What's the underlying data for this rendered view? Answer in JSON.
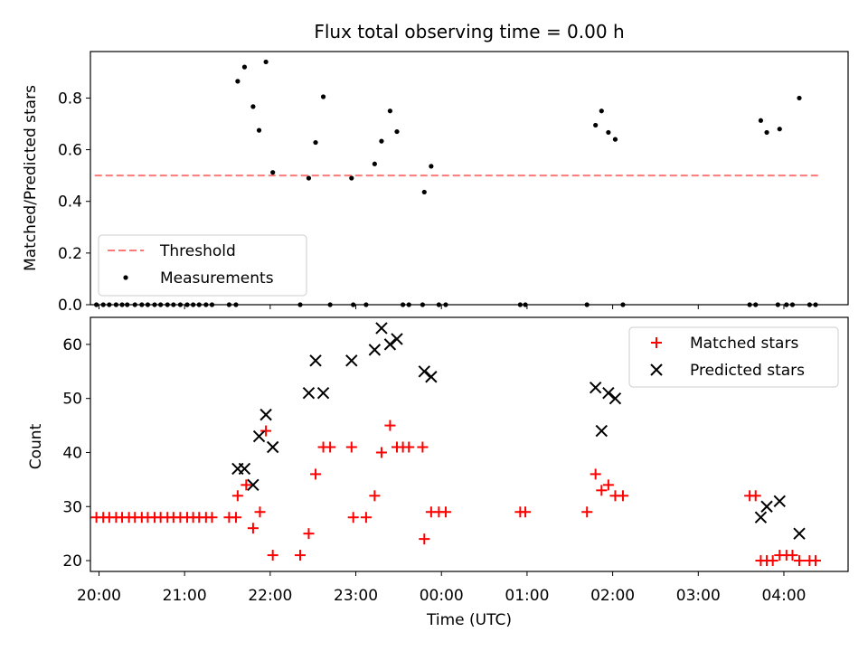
{
  "figure": {
    "title": "Flux total observing time = 0.00 h",
    "x_label": "Time (UTC)",
    "x_ticks": [
      "20:00",
      "21:00",
      "22:00",
      "23:00",
      "00:00",
      "01:00",
      "02:00",
      "03:00",
      "04:00"
    ]
  },
  "chart_data": [
    {
      "type": "scatter",
      "ylabel": "Matched/Predicted stars",
      "xlim": [
        19.9,
        28.75
      ],
      "ylim": [
        0,
        0.98
      ],
      "yticks": [
        "0.0",
        "0.2",
        "0.4",
        "0.6",
        "0.8"
      ],
      "ytick_values": [
        0,
        0.2,
        0.4,
        0.6,
        0.8
      ],
      "grid": false,
      "legend_placement": "lower-left",
      "threshold": {
        "name": "Threshold",
        "value": 0.5,
        "x_range": [
          19.95,
          28.4
        ],
        "color": "#ff7777",
        "style": "dashed"
      },
      "series": [
        {
          "name": "Measurements",
          "marker": "dot",
          "color": "#000000",
          "points": [
            [
              19.97,
              0
            ],
            [
              20.05,
              0
            ],
            [
              20.12,
              0
            ],
            [
              20.2,
              0
            ],
            [
              20.27,
              0
            ],
            [
              20.33,
              0
            ],
            [
              20.42,
              0
            ],
            [
              20.5,
              0
            ],
            [
              20.57,
              0
            ],
            [
              20.65,
              0
            ],
            [
              20.72,
              0
            ],
            [
              20.8,
              0
            ],
            [
              20.87,
              0
            ],
            [
              20.95,
              0
            ],
            [
              21.03,
              0
            ],
            [
              21.1,
              0
            ],
            [
              21.17,
              0
            ],
            [
              21.25,
              0
            ],
            [
              21.32,
              0
            ],
            [
              21.52,
              0
            ],
            [
              21.6,
              0
            ],
            [
              21.62,
              0.865
            ],
            [
              21.7,
              0.92
            ],
            [
              21.8,
              0.767
            ],
            [
              21.87,
              0.675
            ],
            [
              21.95,
              0.94
            ],
            [
              22.03,
              0.512
            ],
            [
              22.35,
              0
            ],
            [
              22.45,
              0.49
            ],
            [
              22.53,
              0.628
            ],
            [
              22.62,
              0.805
            ],
            [
              22.7,
              0
            ],
            [
              22.95,
              0.49
            ],
            [
              22.97,
              0
            ],
            [
              23.12,
              0
            ],
            [
              23.22,
              0.545
            ],
            [
              23.3,
              0.633
            ],
            [
              23.4,
              0.75
            ],
            [
              23.48,
              0.67
            ],
            [
              23.55,
              0
            ],
            [
              23.62,
              0
            ],
            [
              23.78,
              0
            ],
            [
              23.8,
              0.436
            ],
            [
              23.88,
              0.536
            ],
            [
              23.97,
              0
            ],
            [
              24.05,
              0
            ],
            [
              24.92,
              0
            ],
            [
              24.98,
              0
            ],
            [
              25.7,
              0
            ],
            [
              25.8,
              0.695
            ],
            [
              25.87,
              0.75
            ],
            [
              25.95,
              0.667
            ],
            [
              26.03,
              0.64
            ],
            [
              26.12,
              0
            ],
            [
              27.6,
              0
            ],
            [
              27.67,
              0
            ],
            [
              27.73,
              0.713
            ],
            [
              27.8,
              0.667
            ],
            [
              27.93,
              0
            ],
            [
              27.95,
              0.68
            ],
            [
              28.03,
              0
            ],
            [
              28.1,
              0
            ],
            [
              28.18,
              0.8
            ],
            [
              28.3,
              0
            ],
            [
              28.37,
              0
            ]
          ]
        }
      ]
    },
    {
      "type": "scatter",
      "ylabel": "Count",
      "xlim": [
        19.9,
        28.75
      ],
      "ylim": [
        18,
        65
      ],
      "yticks": [
        "20",
        "30",
        "40",
        "50",
        "60"
      ],
      "ytick_values": [
        20,
        30,
        40,
        50,
        60
      ],
      "grid": false,
      "legend_placement": "top-right",
      "series": [
        {
          "name": "Matched stars",
          "marker": "plus",
          "color": "#ff0000",
          "points": [
            [
              19.97,
              28
            ],
            [
              20.05,
              28
            ],
            [
              20.12,
              28
            ],
            [
              20.2,
              28
            ],
            [
              20.27,
              28
            ],
            [
              20.35,
              28
            ],
            [
              20.42,
              28
            ],
            [
              20.5,
              28
            ],
            [
              20.57,
              28
            ],
            [
              20.65,
              28
            ],
            [
              20.72,
              28
            ],
            [
              20.8,
              28
            ],
            [
              20.87,
              28
            ],
            [
              20.95,
              28
            ],
            [
              21.03,
              28
            ],
            [
              21.1,
              28
            ],
            [
              21.17,
              28
            ],
            [
              21.25,
              28
            ],
            [
              21.32,
              28
            ],
            [
              21.52,
              28
            ],
            [
              21.6,
              28
            ],
            [
              21.62,
              32
            ],
            [
              21.72,
              34
            ],
            [
              21.8,
              26
            ],
            [
              21.88,
              29
            ],
            [
              21.95,
              44
            ],
            [
              22.03,
              21
            ],
            [
              22.35,
              21
            ],
            [
              22.45,
              25
            ],
            [
              22.53,
              36
            ],
            [
              22.62,
              41
            ],
            [
              22.7,
              41
            ],
            [
              22.95,
              41
            ],
            [
              22.97,
              28
            ],
            [
              23.12,
              28
            ],
            [
              23.22,
              32
            ],
            [
              23.3,
              40
            ],
            [
              23.4,
              45
            ],
            [
              23.48,
              41
            ],
            [
              23.55,
              41
            ],
            [
              23.62,
              41
            ],
            [
              23.78,
              41
            ],
            [
              23.8,
              24
            ],
            [
              23.88,
              29
            ],
            [
              23.97,
              29
            ],
            [
              24.05,
              29
            ],
            [
              24.92,
              29
            ],
            [
              24.98,
              29
            ],
            [
              25.7,
              29
            ],
            [
              25.8,
              36
            ],
            [
              25.87,
              33
            ],
            [
              25.95,
              34
            ],
            [
              26.03,
              32
            ],
            [
              26.12,
              32
            ],
            [
              27.6,
              32
            ],
            [
              27.67,
              32
            ],
            [
              27.73,
              20
            ],
            [
              27.8,
              20
            ],
            [
              27.87,
              20
            ],
            [
              27.95,
              21
            ],
            [
              28.03,
              21
            ],
            [
              28.1,
              21
            ],
            [
              28.18,
              20
            ],
            [
              28.3,
              20
            ],
            [
              28.37,
              20
            ]
          ]
        },
        {
          "name": "Predicted stars",
          "marker": "x",
          "color": "#000000",
          "points": [
            [
              21.62,
              37
            ],
            [
              21.7,
              37
            ],
            [
              21.8,
              34
            ],
            [
              21.87,
              43
            ],
            [
              21.95,
              47
            ],
            [
              22.03,
              41
            ],
            [
              22.45,
              51
            ],
            [
              22.53,
              57
            ],
            [
              22.62,
              51
            ],
            [
              22.95,
              57
            ],
            [
              23.22,
              59
            ],
            [
              23.3,
              63
            ],
            [
              23.4,
              60
            ],
            [
              23.48,
              61
            ],
            [
              23.8,
              55
            ],
            [
              23.88,
              54
            ],
            [
              25.8,
              52
            ],
            [
              25.87,
              44
            ],
            [
              25.95,
              51
            ],
            [
              26.03,
              50
            ],
            [
              27.73,
              28
            ],
            [
              27.8,
              30
            ],
            [
              27.95,
              31
            ],
            [
              28.18,
              25
            ]
          ]
        }
      ]
    }
  ]
}
